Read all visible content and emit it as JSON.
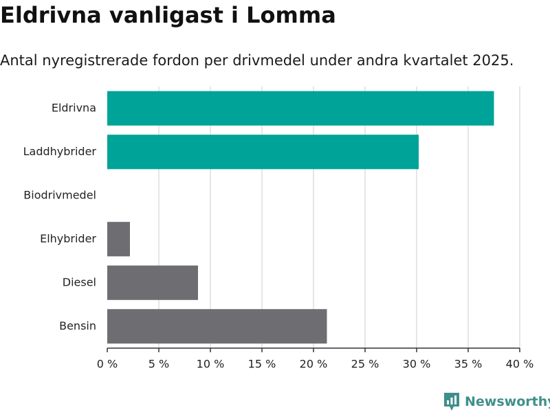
{
  "title": "Eldrivna vanligast i Lomma",
  "subtitle": "Antal nyregistrerade fordon per drivmedel under andra kvartalet 2025.",
  "brand": {
    "name": "Newsworthy",
    "icon": "newsworthy-logo-icon",
    "color": "#3f8f8a"
  },
  "colors": {
    "highlight": "#00a398",
    "other": "#6e6d72",
    "grid": "#dddddd",
    "axis": "#333333"
  },
  "chart_data": {
    "type": "bar",
    "orientation": "horizontal",
    "categories": [
      "Eldrivna",
      "Laddhybrider",
      "Biodrivmedel",
      "Elhybrider",
      "Diesel",
      "Bensin"
    ],
    "values": [
      37.5,
      30.2,
      0,
      2.2,
      8.8,
      21.3
    ],
    "bar_colors": [
      "#00a398",
      "#00a398",
      "#6e6d72",
      "#6e6d72",
      "#6e6d72",
      "#6e6d72"
    ],
    "xlim": [
      0,
      40
    ],
    "x_ticks": [
      0,
      5,
      10,
      15,
      20,
      25,
      30,
      35,
      40
    ],
    "x_tick_labels": [
      "0 %",
      "5 %",
      "10 %",
      "15 %",
      "20 %",
      "25 %",
      "30 %",
      "35 %",
      "40 %"
    ],
    "unit": "%",
    "grid": true,
    "legend": "none"
  }
}
